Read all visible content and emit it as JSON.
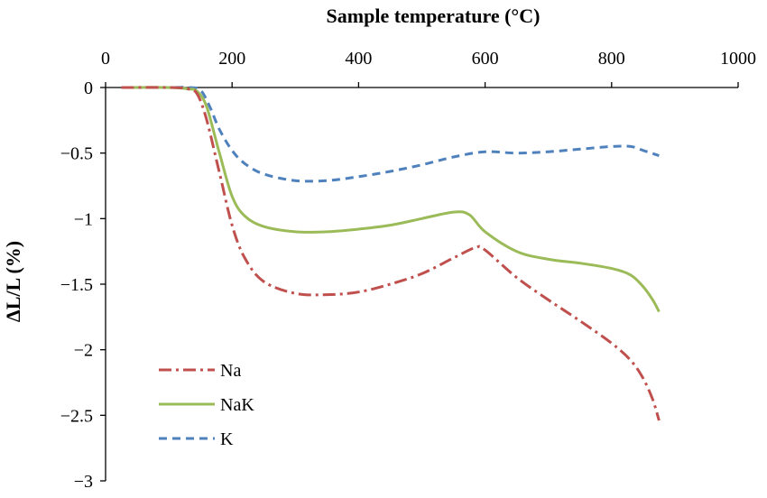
{
  "chart_data": {
    "type": "line",
    "xlabel": "Sample temperature (°C)",
    "ylabel": "ΔL/L (%)",
    "xlim": [
      0,
      1000
    ],
    "ylim": [
      -3,
      0
    ],
    "x_ticks": [
      0,
      200,
      400,
      600,
      800,
      1000
    ],
    "y_ticks": [
      0,
      -0.5,
      -1,
      -1.5,
      -2,
      -2.5,
      -3
    ],
    "x_tick_labels": [
      "0",
      "200",
      "400",
      "600",
      "800",
      "1000"
    ],
    "y_tick_labels": [
      "0",
      "−0.5",
      "−1",
      "−1.5",
      "−2",
      "−2.5",
      "−3"
    ],
    "x_axis_position": "top",
    "grid": false,
    "legend_position": "bottom-left",
    "series": [
      {
        "name": "Na",
        "color": "#c0504d",
        "dash": "dash-dot",
        "x": [
          25,
          100,
          130,
          145,
          160,
          180,
          200,
          220,
          250,
          300,
          350,
          400,
          450,
          500,
          550,
          585,
          600,
          650,
          700,
          750,
          800,
          830,
          850,
          865,
          875
        ],
        "y": [
          0,
          0,
          -0.01,
          -0.05,
          -0.25,
          -0.65,
          -1.05,
          -1.3,
          -1.48,
          -1.57,
          -1.58,
          -1.56,
          -1.5,
          -1.42,
          -1.3,
          -1.22,
          -1.24,
          -1.45,
          -1.62,
          -1.78,
          -1.95,
          -2.08,
          -2.22,
          -2.38,
          -2.54
        ]
      },
      {
        "name": "NaK",
        "color": "#9bbb59",
        "dash": "solid",
        "x": [
          25,
          100,
          130,
          145,
          160,
          180,
          200,
          220,
          250,
          300,
          350,
          400,
          450,
          500,
          550,
          575,
          600,
          650,
          700,
          750,
          800,
          830,
          850,
          865,
          875
        ],
        "y": [
          0,
          0,
          -0.01,
          -0.03,
          -0.15,
          -0.5,
          -0.83,
          -0.98,
          -1.06,
          -1.1,
          -1.1,
          -1.08,
          -1.05,
          -1.0,
          -0.95,
          -0.97,
          -1.1,
          -1.25,
          -1.31,
          -1.34,
          -1.38,
          -1.43,
          -1.52,
          -1.62,
          -1.71
        ]
      },
      {
        "name": "K",
        "color": "#4f81bd",
        "dash": "dashed",
        "x": [
          25,
          100,
          130,
          150,
          165,
          180,
          200,
          220,
          250,
          300,
          350,
          400,
          450,
          500,
          550,
          600,
          650,
          700,
          750,
          800,
          830,
          850,
          875
        ],
        "y": [
          0,
          0,
          0,
          -0.02,
          -0.15,
          -0.32,
          -0.48,
          -0.58,
          -0.66,
          -0.71,
          -0.71,
          -0.68,
          -0.64,
          -0.59,
          -0.53,
          -0.49,
          -0.5,
          -0.49,
          -0.47,
          -0.45,
          -0.45,
          -0.48,
          -0.52
        ]
      }
    ]
  }
}
